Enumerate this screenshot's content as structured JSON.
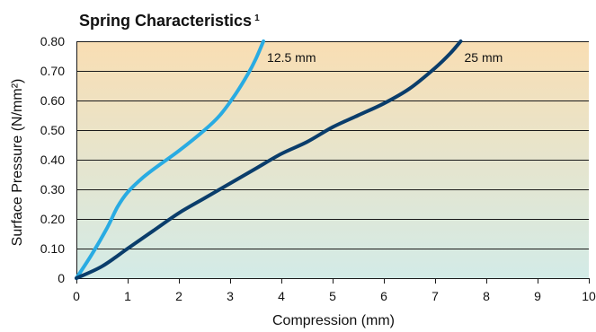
{
  "chart_data": {
    "type": "line",
    "title": "Spring Characteristics",
    "title_footnote": "1",
    "xlabel": "Compression (mm)",
    "ylabel": "Surface Pressure (N/mm²)",
    "xlim": [
      0,
      10
    ],
    "ylim": [
      0,
      0.8
    ],
    "x_ticks": [
      0,
      1,
      2,
      3,
      4,
      5,
      6,
      7,
      8,
      9,
      10
    ],
    "x_tick_labels": [
      "0",
      "1",
      "2",
      "3",
      "4",
      "5",
      "6",
      "7",
      "8",
      "9",
      "10"
    ],
    "y_ticks": [
      0,
      0.1,
      0.2,
      0.3,
      0.4,
      0.5,
      0.6,
      0.7,
      0.8
    ],
    "y_tick_labels": [
      "0",
      "0.10",
      "0.20",
      "0.30",
      "0.40",
      "0.50",
      "0.60",
      "0.70",
      "0.80"
    ],
    "grid": "horizontal",
    "background": "gradient",
    "background_colors": {
      "top": "#f9deb3",
      "bottom": "#d3ebe7"
    },
    "series": [
      {
        "name": "12.5 mm",
        "color": "#29abe2",
        "points": [
          [
            0,
            0
          ],
          [
            0.3,
            0.08
          ],
          [
            0.6,
            0.17
          ],
          [
            0.8,
            0.24
          ],
          [
            1.0,
            0.29
          ],
          [
            1.3,
            0.34
          ],
          [
            1.6,
            0.38
          ],
          [
            2.0,
            0.43
          ],
          [
            2.5,
            0.5
          ],
          [
            2.8,
            0.55
          ],
          [
            3.1,
            0.62
          ],
          [
            3.35,
            0.69
          ],
          [
            3.5,
            0.74
          ],
          [
            3.65,
            0.8
          ]
        ]
      },
      {
        "name": "25 mm",
        "color": "#0a3d6b",
        "points": [
          [
            0,
            0
          ],
          [
            0.5,
            0.04
          ],
          [
            1.0,
            0.1
          ],
          [
            1.5,
            0.16
          ],
          [
            2.0,
            0.22
          ],
          [
            2.5,
            0.27
          ],
          [
            3.0,
            0.32
          ],
          [
            3.5,
            0.37
          ],
          [
            4.0,
            0.42
          ],
          [
            4.5,
            0.46
          ],
          [
            5.0,
            0.51
          ],
          [
            5.5,
            0.55
          ],
          [
            6.0,
            0.59
          ],
          [
            6.5,
            0.64
          ],
          [
            7.0,
            0.71
          ],
          [
            7.3,
            0.76
          ],
          [
            7.5,
            0.8
          ]
        ]
      }
    ]
  }
}
